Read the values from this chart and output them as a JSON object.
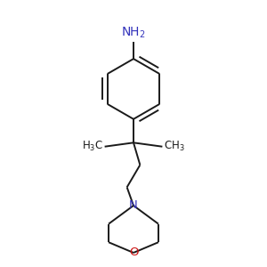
{
  "background_color": "#ffffff",
  "line_color": "#1a1a1a",
  "n_color": "#3333bb",
  "o_color": "#cc1111",
  "nh2_color": "#3333bb",
  "line_width": 1.4,
  "font_size": 8.5,
  "fig_width": 3.0,
  "fig_height": 3.0,
  "dpi": 100
}
